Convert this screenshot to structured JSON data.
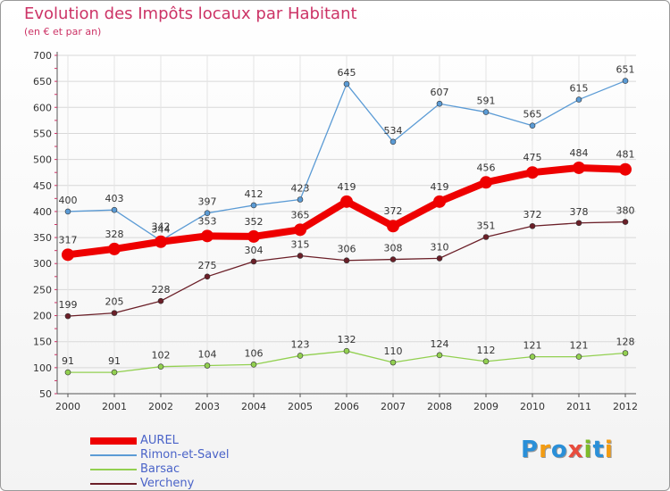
{
  "title": "Evolution des Impôts locaux par Habitant",
  "subtitle": "(en € et par an)",
  "brand": {
    "text": "Proxiti",
    "letters": [
      {
        "ch": "P",
        "color": "#2a8fd8"
      },
      {
        "ch": "r",
        "color": "#f39c12"
      },
      {
        "ch": "o",
        "color": "#2a8fd8"
      },
      {
        "ch": "x",
        "color": "#e84c3d"
      },
      {
        "ch": "i",
        "color": "#7dbb2a"
      },
      {
        "ch": "t",
        "color": "#2a8fd8"
      },
      {
        "ch": "i",
        "color": "#f39c12"
      }
    ]
  },
  "chart_data": {
    "type": "line",
    "x": [
      "2000",
      "2001",
      "2002",
      "2003",
      "2004",
      "2005",
      "2006",
      "2007",
      "2008",
      "2009",
      "2010",
      "2011",
      "2012"
    ],
    "ylim": [
      50,
      700
    ],
    "yticks": [
      50,
      100,
      150,
      200,
      250,
      300,
      350,
      400,
      450,
      500,
      550,
      600,
      650,
      700
    ],
    "grid": true,
    "legend_position": "bottom-left",
    "series": [
      {
        "name": "AUREL",
        "color": "#ee0000",
        "emphasis": true,
        "values": [
          317,
          328,
          342,
          353,
          352,
          365,
          419,
          372,
          419,
          456,
          475,
          484,
          481
        ]
      },
      {
        "name": "Rimon-et-Savel",
        "color": "#5b9bd5",
        "values": [
          400,
          403,
          344,
          397,
          412,
          423,
          645,
          534,
          607,
          591,
          565,
          615,
          651
        ]
      },
      {
        "name": "Barsac",
        "color": "#92d050",
        "values": [
          91,
          91,
          102,
          104,
          106,
          123,
          132,
          110,
          124,
          112,
          121,
          121,
          128
        ]
      },
      {
        "name": "Vercheny",
        "color": "#6b1f28",
        "values": [
          199,
          205,
          228,
          275,
          304,
          315,
          306,
          308,
          310,
          351,
          372,
          378,
          380
        ]
      }
    ]
  }
}
